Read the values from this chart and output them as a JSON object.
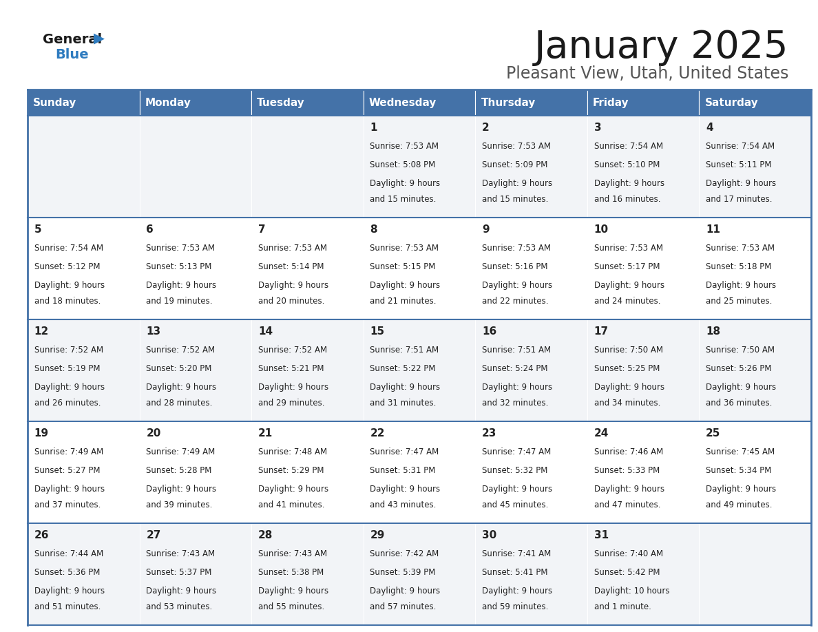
{
  "title": "January 2025",
  "subtitle": "Pleasant View, Utah, United States",
  "header_color": "#4472a8",
  "header_text_color": "#ffffff",
  "cell_bg_even": "#f2f4f7",
  "cell_bg_odd": "#ffffff",
  "border_color": "#4472a8",
  "text_color": "#222222",
  "days_of_week": [
    "Sunday",
    "Monday",
    "Tuesday",
    "Wednesday",
    "Thursday",
    "Friday",
    "Saturday"
  ],
  "weeks": [
    [
      {
        "day": null,
        "sunrise": null,
        "sunset": null,
        "daylight_line1": null,
        "daylight_line2": null
      },
      {
        "day": null,
        "sunrise": null,
        "sunset": null,
        "daylight_line1": null,
        "daylight_line2": null
      },
      {
        "day": null,
        "sunrise": null,
        "sunset": null,
        "daylight_line1": null,
        "daylight_line2": null
      },
      {
        "day": "1",
        "sunrise": "Sunrise: 7:53 AM",
        "sunset": "Sunset: 5:08 PM",
        "daylight_line1": "Daylight: 9 hours",
        "daylight_line2": "and 15 minutes."
      },
      {
        "day": "2",
        "sunrise": "Sunrise: 7:53 AM",
        "sunset": "Sunset: 5:09 PM",
        "daylight_line1": "Daylight: 9 hours",
        "daylight_line2": "and 15 minutes."
      },
      {
        "day": "3",
        "sunrise": "Sunrise: 7:54 AM",
        "sunset": "Sunset: 5:10 PM",
        "daylight_line1": "Daylight: 9 hours",
        "daylight_line2": "and 16 minutes."
      },
      {
        "day": "4",
        "sunrise": "Sunrise: 7:54 AM",
        "sunset": "Sunset: 5:11 PM",
        "daylight_line1": "Daylight: 9 hours",
        "daylight_line2": "and 17 minutes."
      }
    ],
    [
      {
        "day": "5",
        "sunrise": "Sunrise: 7:54 AM",
        "sunset": "Sunset: 5:12 PM",
        "daylight_line1": "Daylight: 9 hours",
        "daylight_line2": "and 18 minutes."
      },
      {
        "day": "6",
        "sunrise": "Sunrise: 7:53 AM",
        "sunset": "Sunset: 5:13 PM",
        "daylight_line1": "Daylight: 9 hours",
        "daylight_line2": "and 19 minutes."
      },
      {
        "day": "7",
        "sunrise": "Sunrise: 7:53 AM",
        "sunset": "Sunset: 5:14 PM",
        "daylight_line1": "Daylight: 9 hours",
        "daylight_line2": "and 20 minutes."
      },
      {
        "day": "8",
        "sunrise": "Sunrise: 7:53 AM",
        "sunset": "Sunset: 5:15 PM",
        "daylight_line1": "Daylight: 9 hours",
        "daylight_line2": "and 21 minutes."
      },
      {
        "day": "9",
        "sunrise": "Sunrise: 7:53 AM",
        "sunset": "Sunset: 5:16 PM",
        "daylight_line1": "Daylight: 9 hours",
        "daylight_line2": "and 22 minutes."
      },
      {
        "day": "10",
        "sunrise": "Sunrise: 7:53 AM",
        "sunset": "Sunset: 5:17 PM",
        "daylight_line1": "Daylight: 9 hours",
        "daylight_line2": "and 24 minutes."
      },
      {
        "day": "11",
        "sunrise": "Sunrise: 7:53 AM",
        "sunset": "Sunset: 5:18 PM",
        "daylight_line1": "Daylight: 9 hours",
        "daylight_line2": "and 25 minutes."
      }
    ],
    [
      {
        "day": "12",
        "sunrise": "Sunrise: 7:52 AM",
        "sunset": "Sunset: 5:19 PM",
        "daylight_line1": "Daylight: 9 hours",
        "daylight_line2": "and 26 minutes."
      },
      {
        "day": "13",
        "sunrise": "Sunrise: 7:52 AM",
        "sunset": "Sunset: 5:20 PM",
        "daylight_line1": "Daylight: 9 hours",
        "daylight_line2": "and 28 minutes."
      },
      {
        "day": "14",
        "sunrise": "Sunrise: 7:52 AM",
        "sunset": "Sunset: 5:21 PM",
        "daylight_line1": "Daylight: 9 hours",
        "daylight_line2": "and 29 minutes."
      },
      {
        "day": "15",
        "sunrise": "Sunrise: 7:51 AM",
        "sunset": "Sunset: 5:22 PM",
        "daylight_line1": "Daylight: 9 hours",
        "daylight_line2": "and 31 minutes."
      },
      {
        "day": "16",
        "sunrise": "Sunrise: 7:51 AM",
        "sunset": "Sunset: 5:24 PM",
        "daylight_line1": "Daylight: 9 hours",
        "daylight_line2": "and 32 minutes."
      },
      {
        "day": "17",
        "sunrise": "Sunrise: 7:50 AM",
        "sunset": "Sunset: 5:25 PM",
        "daylight_line1": "Daylight: 9 hours",
        "daylight_line2": "and 34 minutes."
      },
      {
        "day": "18",
        "sunrise": "Sunrise: 7:50 AM",
        "sunset": "Sunset: 5:26 PM",
        "daylight_line1": "Daylight: 9 hours",
        "daylight_line2": "and 36 minutes."
      }
    ],
    [
      {
        "day": "19",
        "sunrise": "Sunrise: 7:49 AM",
        "sunset": "Sunset: 5:27 PM",
        "daylight_line1": "Daylight: 9 hours",
        "daylight_line2": "and 37 minutes."
      },
      {
        "day": "20",
        "sunrise": "Sunrise: 7:49 AM",
        "sunset": "Sunset: 5:28 PM",
        "daylight_line1": "Daylight: 9 hours",
        "daylight_line2": "and 39 minutes."
      },
      {
        "day": "21",
        "sunrise": "Sunrise: 7:48 AM",
        "sunset": "Sunset: 5:29 PM",
        "daylight_line1": "Daylight: 9 hours",
        "daylight_line2": "and 41 minutes."
      },
      {
        "day": "22",
        "sunrise": "Sunrise: 7:47 AM",
        "sunset": "Sunset: 5:31 PM",
        "daylight_line1": "Daylight: 9 hours",
        "daylight_line2": "and 43 minutes."
      },
      {
        "day": "23",
        "sunrise": "Sunrise: 7:47 AM",
        "sunset": "Sunset: 5:32 PM",
        "daylight_line1": "Daylight: 9 hours",
        "daylight_line2": "and 45 minutes."
      },
      {
        "day": "24",
        "sunrise": "Sunrise: 7:46 AM",
        "sunset": "Sunset: 5:33 PM",
        "daylight_line1": "Daylight: 9 hours",
        "daylight_line2": "and 47 minutes."
      },
      {
        "day": "25",
        "sunrise": "Sunrise: 7:45 AM",
        "sunset": "Sunset: 5:34 PM",
        "daylight_line1": "Daylight: 9 hours",
        "daylight_line2": "and 49 minutes."
      }
    ],
    [
      {
        "day": "26",
        "sunrise": "Sunrise: 7:44 AM",
        "sunset": "Sunset: 5:36 PM",
        "daylight_line1": "Daylight: 9 hours",
        "daylight_line2": "and 51 minutes."
      },
      {
        "day": "27",
        "sunrise": "Sunrise: 7:43 AM",
        "sunset": "Sunset: 5:37 PM",
        "daylight_line1": "Daylight: 9 hours",
        "daylight_line2": "and 53 minutes."
      },
      {
        "day": "28",
        "sunrise": "Sunrise: 7:43 AM",
        "sunset": "Sunset: 5:38 PM",
        "daylight_line1": "Daylight: 9 hours",
        "daylight_line2": "and 55 minutes."
      },
      {
        "day": "29",
        "sunrise": "Sunrise: 7:42 AM",
        "sunset": "Sunset: 5:39 PM",
        "daylight_line1": "Daylight: 9 hours",
        "daylight_line2": "and 57 minutes."
      },
      {
        "day": "30",
        "sunrise": "Sunrise: 7:41 AM",
        "sunset": "Sunset: 5:41 PM",
        "daylight_line1": "Daylight: 9 hours",
        "daylight_line2": "and 59 minutes."
      },
      {
        "day": "31",
        "sunrise": "Sunrise: 7:40 AM",
        "sunset": "Sunset: 5:42 PM",
        "daylight_line1": "Daylight: 10 hours",
        "daylight_line2": "and 1 minute."
      },
      {
        "day": null,
        "sunrise": null,
        "sunset": null,
        "daylight_line1": null,
        "daylight_line2": null
      }
    ]
  ]
}
